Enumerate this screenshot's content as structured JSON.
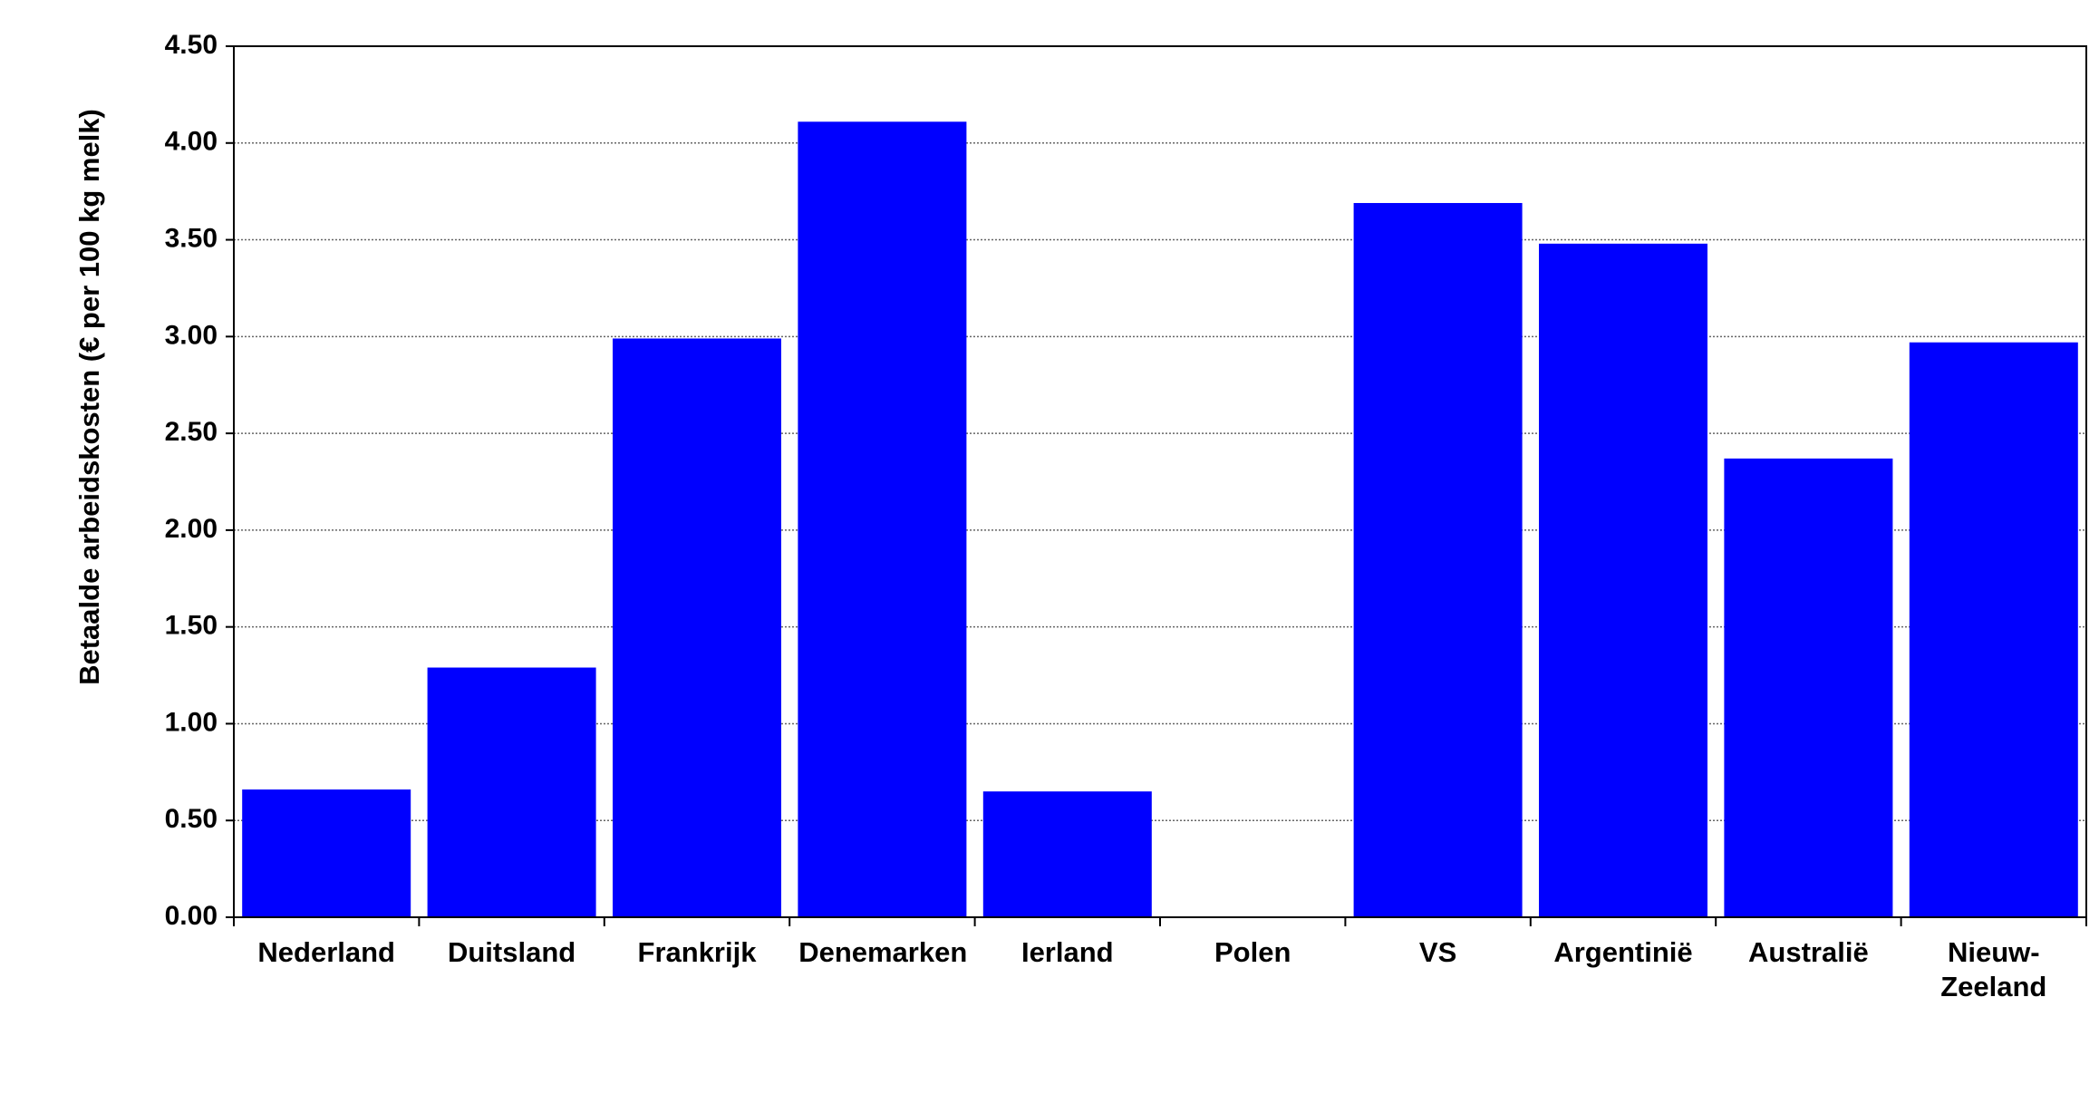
{
  "chart_data": {
    "type": "bar",
    "y_label": "Betaalde  arbeidskosten (€ per 100 kg melk)",
    "categories": [
      "Nederland",
      "Duitsland",
      "Frankrijk",
      "Denemarken",
      "Ierland",
      "Polen",
      "VS",
      "Argentinië",
      "Australië",
      "Nieuw-Zeeland"
    ],
    "values": [
      0.66,
      1.29,
      2.99,
      4.11,
      0.65,
      null,
      3.69,
      3.48,
      2.37,
      2.97
    ],
    "color": "#0000ff",
    "ylim": [
      0,
      4.5
    ],
    "yticks": [
      {
        "value": 0,
        "label": "0.00"
      },
      {
        "value": 0.5,
        "label": "0.50"
      },
      {
        "value": 1,
        "label": "1.00"
      },
      {
        "value": 1.5,
        "label": "1.50"
      },
      {
        "value": 2,
        "label": "2.00"
      },
      {
        "value": 2.5,
        "label": "2.50"
      },
      {
        "value": 3,
        "label": "3.00"
      },
      {
        "value": 3.5,
        "label": "3.50"
      },
      {
        "value": 4,
        "label": "4.00"
      },
      {
        "value": 4.5,
        "label": "4.50"
      }
    ],
    "grid": true
  }
}
